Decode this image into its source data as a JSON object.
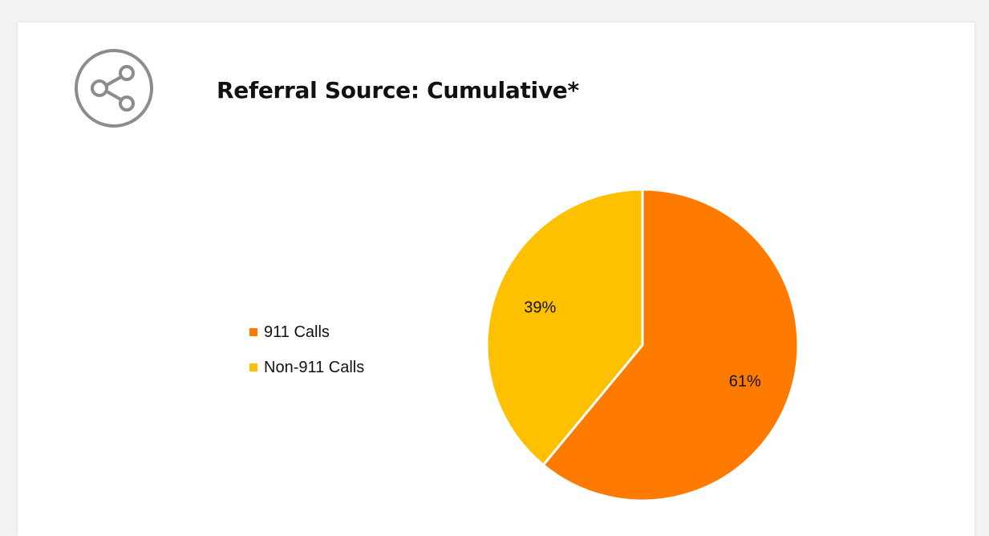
{
  "header": {
    "icon": "share-icon",
    "title": "Referral Source: Cumulative*"
  },
  "colors": {
    "series_911": "#FF7B00",
    "series_non911": "#FFC000",
    "icon": "#8c8c8c"
  },
  "chart_data": {
    "type": "pie",
    "title": "Referral Source: Cumulative*",
    "categories": [
      "911 Calls",
      "Non-911 Calls"
    ],
    "values": [
      61,
      39
    ],
    "labels": [
      "61%",
      "39%"
    ],
    "colors": [
      "#FF7B00",
      "#FFC000"
    ],
    "legend_position": "left"
  }
}
